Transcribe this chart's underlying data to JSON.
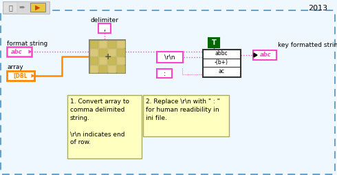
{
  "bg_color": "#f0f8ff",
  "outer_border_color": "#5599cc",
  "year_text": "2013",
  "delimiter_label": "delimiter",
  "format_string_label": "format string",
  "array_label": "array",
  "key_formatted_string_label": "key formatted string",
  "pink": "#ff44cc",
  "orange": "#ff8800",
  "dark_green": "#006600",
  "yellow_bg": "#ffffc0",
  "white": "#ffffff",
  "black": "#000000",
  "note1_text": "1. Convert array to\ncomma delimited\nstring.\n\n\\r\\n indicates end\nof row.",
  "note2_text": "2. Replace \\r\\n with \" : \"\nfor human readibility in\nini file."
}
